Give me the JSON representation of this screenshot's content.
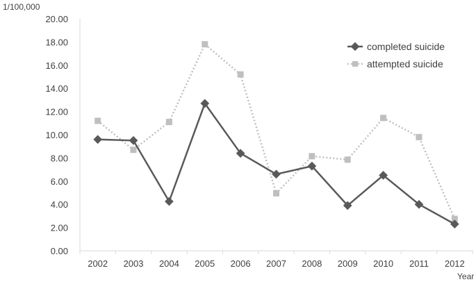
{
  "chart_data": {
    "type": "line",
    "ylabel": "1/100,000",
    "xlabel": "Year",
    "categories": [
      "2002",
      "2003",
      "2004",
      "2005",
      "2006",
      "2007",
      "2008",
      "2009",
      "2010",
      "2011",
      "2012"
    ],
    "ylim": [
      0,
      20
    ],
    "yticks": [
      "0.00",
      "2.00",
      "4.00",
      "6.00",
      "8.00",
      "10.00",
      "12.00",
      "14.00",
      "16.00",
      "18.00",
      "20.00"
    ],
    "grid": false,
    "legend_position": "top-right",
    "series": [
      {
        "name": "completed suicide",
        "color": "#595959",
        "line_style": "solid",
        "marker": "diamond",
        "values": [
          9.6,
          9.5,
          4.25,
          12.7,
          8.4,
          6.6,
          7.3,
          3.9,
          6.5,
          4.0,
          2.3
        ]
      },
      {
        "name": "attempted suicide",
        "color": "#bfbfbf",
        "line_style": "dotted",
        "marker": "square",
        "values": [
          11.2,
          8.7,
          11.1,
          17.8,
          15.2,
          4.95,
          8.15,
          7.85,
          11.45,
          9.8,
          2.75
        ]
      }
    ]
  }
}
